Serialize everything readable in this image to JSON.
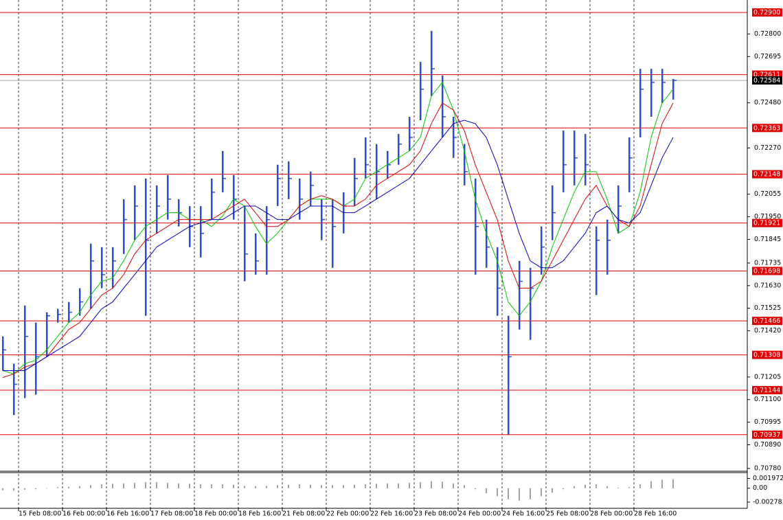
{
  "chart_data": {
    "type": "ohlc",
    "ylim": [
      0.70767,
      0.72942
    ],
    "yticks": [
      {
        "value": 0.728,
        "label": "0.72800"
      },
      0.72695,
      {
        "value": 0.7248,
        "label": "0.72480"
      },
      {
        "value": 0.7227,
        "label": "0.72270"
      },
      0.72055,
      {
        "value": 0.7195,
        "label": "0.71950"
      },
      0.71845,
      0.71735,
      {
        "value": 0.7163,
        "label": "0.71630"
      },
      0.71525,
      {
        "value": 0.7142,
        "label": "0.71420"
      },
      0.71205,
      {
        "value": 0.711,
        "label": "0.71100"
      },
      0.70995,
      {
        "value": 0.7089,
        "label": "0.70890"
      },
      {
        "value": 0.7078,
        "label": "0.70780"
      }
    ],
    "categories": [
      "15 Feb 08:00",
      "16 Feb 00:00",
      "16 Feb 16:00",
      "17 Feb 08:00",
      "18 Feb 00:00",
      "18 Feb 16:00",
      "21 Feb 08:00",
      "22 Feb 00:00",
      "22 Feb 16:00",
      "23 Feb 08:00",
      "24 Feb 00:00",
      "24 Feb 16:00",
      "25 Feb 08:00",
      "28 Feb 00:00",
      "28 Feb 16:00"
    ],
    "color": "#2b4fc8",
    "high": [
      0.71394,
      0.71267,
      0.71538,
      0.71458,
      0.71506,
      0.71522,
      0.71554,
      0.71618,
      0.71825,
      0.71809,
      0.71809,
      0.72032,
      0.72096,
      0.72128,
      0.72096,
      0.72144,
      0.72032,
      0.72,
      0.72,
      0.72128,
      0.72256,
      0.72144,
      0.72,
      0.71873,
      0.72,
      0.72192,
      0.72208,
      0.72128,
      0.7216,
      0.72032,
      0.72032,
      0.72064,
      0.72224,
      0.72319,
      0.72288,
      0.72256,
      0.72335,
      0.72415,
      0.7267,
      0.72814,
      0.72607,
      0.72415,
      0.72288,
      0.72128,
      0.71937,
      0.71809,
      0.7149,
      0.71745,
      0.71713,
      0.71905,
      0.72096,
      0.72351,
      0.72351,
      0.72335,
      0.71905,
      0.71937,
      0.72096,
      0.72319,
      0.72638,
      0.72638,
      0.72638,
      0.72591
    ],
    "low": [
      0.71235,
      0.71028,
      0.71107,
      0.71123,
      0.71299,
      0.71458,
      0.71458,
      0.7149,
      0.71522,
      0.71618,
      0.71618,
      0.71777,
      0.71841,
      0.7149,
      0.71873,
      0.71937,
      0.71905,
      0.71809,
      0.71761,
      0.71937,
      0.72064,
      0.71937,
      0.7165,
      0.71681,
      0.71681,
      0.72,
      0.72032,
      0.71937,
      0.72,
      0.71841,
      0.71713,
      0.71873,
      0.72,
      0.72128,
      0.72032,
      0.72128,
      0.72192,
      0.72256,
      0.72399,
      0.72511,
      0.72319,
      0.72224,
      0.72096,
      0.71681,
      0.71713,
      0.7149,
      0.70937,
      0.71426,
      0.71378,
      0.71681,
      0.71841,
      0.72064,
      0.72096,
      0.72096,
      0.71586,
      0.71681,
      0.71873,
      0.72064,
      0.72319,
      0.72415,
      0.72479,
      0.72495
    ],
    "close": [
      0.71331,
      0.71171,
      0.71394,
      0.71299,
      0.7149,
      0.71496,
      0.71506,
      0.71554,
      0.71745,
      0.71681,
      0.71745,
      0.71937,
      0.72,
      0.71841,
      0.72,
      0.72032,
      0.71969,
      0.71905,
      0.71873,
      0.72064,
      0.72128,
      0.72032,
      0.71777,
      0.71745,
      0.71937,
      0.72128,
      0.72128,
      0.72032,
      0.72096,
      0.71937,
      0.71905,
      0.72,
      0.72128,
      0.72192,
      0.7216,
      0.72192,
      0.72288,
      0.72319,
      0.72543,
      0.72638,
      0.72415,
      0.72319,
      0.7216,
      0.71905,
      0.71809,
      0.71618,
      0.71299,
      0.7165,
      0.71618,
      0.71809,
      0.71969,
      0.72192,
      0.72224,
      0.72192,
      0.71841,
      0.71841,
      0.72,
      0.72224,
      0.72543,
      0.72575,
      0.72575,
      0.72584
    ],
    "moving_averages": [
      {
        "color": "#00c800",
        "values": [
          0.71235,
          0.71219,
          0.71267,
          0.71283,
          0.71331,
          0.71394,
          0.71458,
          0.71506,
          0.71586,
          0.7165,
          0.71665,
          0.71745,
          0.71841,
          0.71905,
          0.71937,
          0.71969,
          0.71969,
          0.71937,
          0.71937,
          0.71905,
          0.71953,
          0.72032,
          0.72,
          0.71905,
          0.71825,
          0.71873,
          0.71937,
          0.72,
          0.72032,
          0.72032,
          0.72032,
          0.72,
          0.72032,
          0.72128,
          0.7216,
          0.72192,
          0.72224,
          0.72256,
          0.72319,
          0.72511,
          0.72575,
          0.72447,
          0.72256,
          0.72032,
          0.71873,
          0.71745,
          0.71554,
          0.7149,
          0.71554,
          0.7165,
          0.71809,
          0.71937,
          0.72064,
          0.7216,
          0.7216,
          0.72032,
          0.71873,
          0.71905,
          0.72064,
          0.72319,
          0.72479,
          0.72543
        ]
      },
      {
        "color": "#e00000",
        "values": [
          0.71203,
          0.71219,
          0.71251,
          0.71267,
          0.71299,
          0.71362,
          0.71426,
          0.71458,
          0.71522,
          0.71586,
          0.71618,
          0.71681,
          0.71777,
          0.71841,
          0.71873,
          0.71905,
          0.71937,
          0.71937,
          0.71937,
          0.71937,
          0.71969,
          0.72,
          0.72032,
          0.71969,
          0.71905,
          0.71905,
          0.71937,
          0.72,
          0.72032,
          0.72048,
          0.72032,
          0.72,
          0.72,
          0.72032,
          0.72096,
          0.72128,
          0.7216,
          0.72192,
          0.72256,
          0.72383,
          0.72479,
          0.72447,
          0.72351,
          0.72192,
          0.72064,
          0.71937,
          0.71745,
          0.71618,
          0.71618,
          0.7165,
          0.71745,
          0.71841,
          0.71937,
          0.72032,
          0.72096,
          0.72,
          0.71937,
          0.71905,
          0.72,
          0.72192,
          0.72383,
          0.72479
        ]
      },
      {
        "color": "#0000c8",
        "values": [
          0.71235,
          0.71235,
          0.71235,
          0.71267,
          0.71299,
          0.71331,
          0.71362,
          0.71394,
          0.71458,
          0.71522,
          0.71554,
          0.71618,
          0.71681,
          0.71745,
          0.71809,
          0.71841,
          0.71873,
          0.71905,
          0.71921,
          0.71937,
          0.71937,
          0.71969,
          0.72,
          0.72,
          0.71969,
          0.71937,
          0.71937,
          0.71969,
          0.72,
          0.72,
          0.72,
          0.71969,
          0.71969,
          0.72,
          0.72032,
          0.72064,
          0.72096,
          0.72128,
          0.72192,
          0.72256,
          0.72319,
          0.72383,
          0.72399,
          0.72383,
          0.72319,
          0.72192,
          0.72032,
          0.71873,
          0.71745,
          0.71713,
          0.71713,
          0.71745,
          0.71809,
          0.71873,
          0.71969,
          0.72,
          0.71937,
          0.71921,
          0.71969,
          0.72096,
          0.72224,
          0.72319
        ]
      }
    ],
    "levels": [
      {
        "value": 0.729,
        "label": "0.72900"
      },
      0.72611,
      0.72363,
      0.72148,
      0.71921,
      0.71698,
      0.71466,
      0.71308,
      0.71144,
      0.70937
    ],
    "level_color": "#e00000",
    "current_price": 0.72584,
    "indicator": {
      "ylim": [
        -0.0039,
        0.003
      ],
      "yticks": [
        0.001972,
        {
          "value": 0,
          "label": "0.00"
        },
        -0.002783
      ],
      "color": "#a0a0a0",
      "values": [
        -0.0004,
        -0.0005,
        -0.0003,
        -0.0002,
        0.0,
        0.0002,
        0.0003,
        0.0004,
        0.0006,
        0.0008,
        0.0009,
        0.001,
        0.0011,
        0.0012,
        0.0012,
        0.0011,
        0.001,
        0.0009,
        0.0008,
        0.0008,
        0.0008,
        0.0007,
        0.0005,
        0.0004,
        0.0005,
        0.0006,
        0.0007,
        0.0008,
        0.0007,
        0.0006,
        0.0006,
        0.0006,
        0.0007,
        0.0008,
        0.0009,
        0.001,
        0.001,
        0.0011,
        0.0012,
        0.0014,
        0.0013,
        0.001,
        0.0006,
        -0.0002,
        -0.001,
        -0.0016,
        -0.0022,
        -0.0025,
        -0.0022,
        -0.0016,
        -0.0009,
        -0.0002,
        0.0004,
        0.0007,
        0.0008,
        0.0004,
        0.0001,
        0.0002,
        0.0008,
        0.0014,
        0.0017,
        0.0018
      ]
    }
  }
}
